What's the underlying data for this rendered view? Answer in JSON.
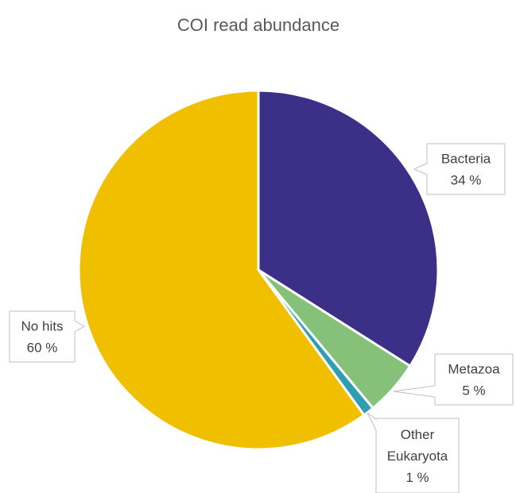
{
  "chart_data": {
    "type": "pie",
    "title": "COI read abundance",
    "slices": [
      {
        "name": "Bacteria",
        "value": 34,
        "label": "34 %",
        "color": "#3c2f87"
      },
      {
        "name": "Metazoa",
        "value": 5,
        "label": "5 %",
        "color": "#86c17a"
      },
      {
        "name": "Other Eukaryota",
        "value": 1,
        "label": "1 %",
        "color": "#2e9fb3"
      },
      {
        "name": "No hits",
        "value": 60,
        "label": "60 %",
        "color": "#efbf00"
      }
    ],
    "legend": "none",
    "data_labels": "callouts"
  }
}
